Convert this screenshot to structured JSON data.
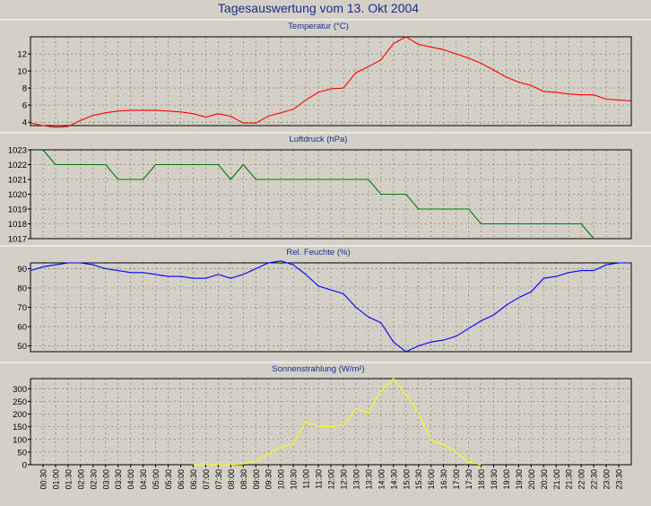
{
  "title": "Tagesauswertung vom 13. Okt 2004",
  "colors": {
    "temperature": "#ff0000",
    "pressure": "#007800",
    "humidity": "#0000ff",
    "radiation": "#ffff00",
    "title": "#1a2e8c"
  },
  "x_ticks": [
    "00:30",
    "01:00",
    "01:30",
    "02:00",
    "02:30",
    "03:00",
    "03:30",
    "04:00",
    "04:30",
    "05:00",
    "05:30",
    "06:00",
    "06:30",
    "07:00",
    "07:30",
    "08:00",
    "08:30",
    "09:00",
    "09:30",
    "10:00",
    "10:30",
    "11:00",
    "11:30",
    "12:00",
    "12:30",
    "13:00",
    "13:30",
    "14:00",
    "14:30",
    "15:00",
    "15:30",
    "16:00",
    "16:30",
    "17:00",
    "17:30",
    "18:00",
    "18:30",
    "19:00",
    "19:30",
    "20:00",
    "20:30",
    "21:00",
    "21:30",
    "22:00",
    "22:30",
    "23:00",
    "23:30"
  ],
  "chart_data": [
    {
      "type": "line",
      "title": "Temperatur (°C)",
      "ylim": [
        3.6,
        14
      ],
      "yticks": [
        4,
        6,
        8,
        10,
        12
      ],
      "grid": true,
      "x": [
        "00:00",
        "00:30",
        "01:00",
        "01:30",
        "02:00",
        "02:30",
        "03:00",
        "03:30",
        "04:00",
        "04:30",
        "05:00",
        "05:30",
        "06:00",
        "06:30",
        "07:00",
        "07:30",
        "08:00",
        "08:30",
        "09:00",
        "09:30",
        "10:00",
        "10:30",
        "11:00",
        "11:30",
        "12:00",
        "12:30",
        "13:00",
        "13:30",
        "14:00",
        "14:30",
        "15:00",
        "15:30",
        "16:00",
        "16:30",
        "17:00",
        "17:30",
        "18:00",
        "18:30",
        "19:00",
        "19:30",
        "20:00",
        "20:30",
        "21:00",
        "21:30",
        "22:00",
        "22:30",
        "23:00",
        "23:30",
        "23:59"
      ],
      "series": [
        {
          "values": [
            3.9,
            3.6,
            3.4,
            3.5,
            4.2,
            4.8,
            5.1,
            5.3,
            5.4,
            5.4,
            5.4,
            5.3,
            5.2,
            5.0,
            4.6,
            5.0,
            4.7,
            3.9,
            3.9,
            4.7,
            5.1,
            5.5,
            6.6,
            7.5,
            7.9,
            8.0,
            9.8,
            10.5,
            11.3,
            13.2,
            14.0,
            13.1,
            12.8,
            12.5,
            12.0,
            11.5,
            10.9,
            10.1,
            9.3,
            8.7,
            8.3,
            7.6,
            7.5,
            7.3,
            7.2,
            7.2,
            6.7,
            6.6,
            6.5
          ]
        }
      ]
    },
    {
      "type": "line",
      "title": "Luftdruck (hPa)",
      "ylim": [
        1017,
        1023
      ],
      "yticks": [
        1017,
        1018,
        1019,
        1020,
        1021,
        1022,
        1023
      ],
      "grid": true,
      "x": [
        "00:00",
        "00:30",
        "01:00",
        "01:30",
        "02:00",
        "02:30",
        "03:00",
        "03:30",
        "04:00",
        "04:30",
        "05:00",
        "05:30",
        "06:00",
        "06:30",
        "07:00",
        "07:30",
        "08:00",
        "08:30",
        "09:00",
        "09:30",
        "10:00",
        "10:30",
        "11:00",
        "11:30",
        "12:00",
        "12:30",
        "13:00",
        "13:30",
        "14:00",
        "14:30",
        "15:00",
        "15:30",
        "16:00",
        "16:30",
        "17:00",
        "17:30",
        "18:00",
        "18:30",
        "19:00",
        "19:30",
        "20:00",
        "20:30",
        "21:00",
        "21:30",
        "22:00",
        "22:30",
        "23:00",
        "23:30",
        "23:59"
      ],
      "series": [
        {
          "values": [
            null,
            1023,
            1022,
            1022,
            1022,
            1022,
            1022,
            1021,
            1021,
            1021,
            1022,
            1022,
            1022,
            1022,
            1022,
            1022,
            1021,
            1022,
            1021,
            1021,
            1021,
            1021,
            1021,
            1021,
            1021,
            1021,
            1021,
            1021,
            1020,
            1020,
            1020,
            1019,
            1019,
            1019,
            1019,
            1019,
            1018,
            1018,
            1018,
            1018,
            1018,
            1018,
            1018,
            1018,
            1018,
            1017,
            null,
            null,
            null
          ]
        }
      ]
    },
    {
      "type": "line",
      "title": "Rel. Feuchte (%)",
      "ylim": [
        47,
        93
      ],
      "yticks": [
        50,
        60,
        70,
        80,
        90
      ],
      "grid": true,
      "x": [
        "00:00",
        "00:30",
        "01:00",
        "01:30",
        "02:00",
        "02:30",
        "03:00",
        "03:30",
        "04:00",
        "04:30",
        "05:00",
        "05:30",
        "06:00",
        "06:30",
        "07:00",
        "07:30",
        "08:00",
        "08:30",
        "09:00",
        "09:30",
        "10:00",
        "10:30",
        "11:00",
        "11:30",
        "12:00",
        "12:30",
        "13:00",
        "13:30",
        "14:00",
        "14:30",
        "15:00",
        "15:30",
        "16:00",
        "16:30",
        "17:00",
        "17:30",
        "18:00",
        "18:30",
        "19:00",
        "19:30",
        "20:00",
        "20:30",
        "21:00",
        "21:30",
        "22:00",
        "22:30",
        "23:00",
        "23:30",
        "23:59"
      ],
      "series": [
        {
          "values": [
            89,
            91,
            92,
            93,
            93,
            92,
            90,
            89,
            88,
            88,
            87,
            86,
            86,
            85,
            85,
            87,
            85,
            87,
            90,
            93,
            94,
            92,
            87,
            81,
            79,
            77,
            70,
            65,
            62,
            52,
            47,
            50,
            52,
            53,
            55,
            59,
            63,
            66,
            71,
            75,
            78,
            85,
            86,
            88,
            89,
            89,
            92,
            93,
            93
          ]
        }
      ]
    },
    {
      "type": "line",
      "title": "Sonnenstrahlung (W/m²)",
      "ylim": [
        0,
        340
      ],
      "yticks": [
        0,
        50,
        100,
        150,
        200,
        250,
        300
      ],
      "grid": true,
      "x": [
        "00:00",
        "00:30",
        "01:00",
        "01:30",
        "02:00",
        "02:30",
        "03:00",
        "03:30",
        "04:00",
        "04:30",
        "05:00",
        "05:30",
        "06:00",
        "06:30",
        "07:00",
        "07:30",
        "08:00",
        "08:30",
        "09:00",
        "09:30",
        "10:00",
        "10:30",
        "11:00",
        "11:30",
        "12:00",
        "12:30",
        "13:00",
        "13:30",
        "14:00",
        "14:30",
        "15:00",
        "15:30",
        "16:00",
        "16:30",
        "17:00",
        "17:30",
        "18:00",
        "18:30",
        "19:00",
        "19:30",
        "20:00",
        "20:30",
        "21:00",
        "21:30",
        "22:00",
        "22:30",
        "23:00",
        "23:30",
        "23:59"
      ],
      "series": [
        {
          "values": [
            null,
            null,
            null,
            null,
            null,
            null,
            null,
            null,
            null,
            null,
            null,
            null,
            null,
            0,
            0,
            0,
            0,
            3,
            15,
            40,
            70,
            82,
            170,
            152,
            150,
            155,
            220,
            205,
            290,
            340,
            280,
            200,
            100,
            80,
            50,
            10,
            0,
            null,
            null,
            null,
            null,
            null,
            null,
            null,
            null,
            null,
            null,
            null,
            null
          ]
        }
      ]
    }
  ]
}
